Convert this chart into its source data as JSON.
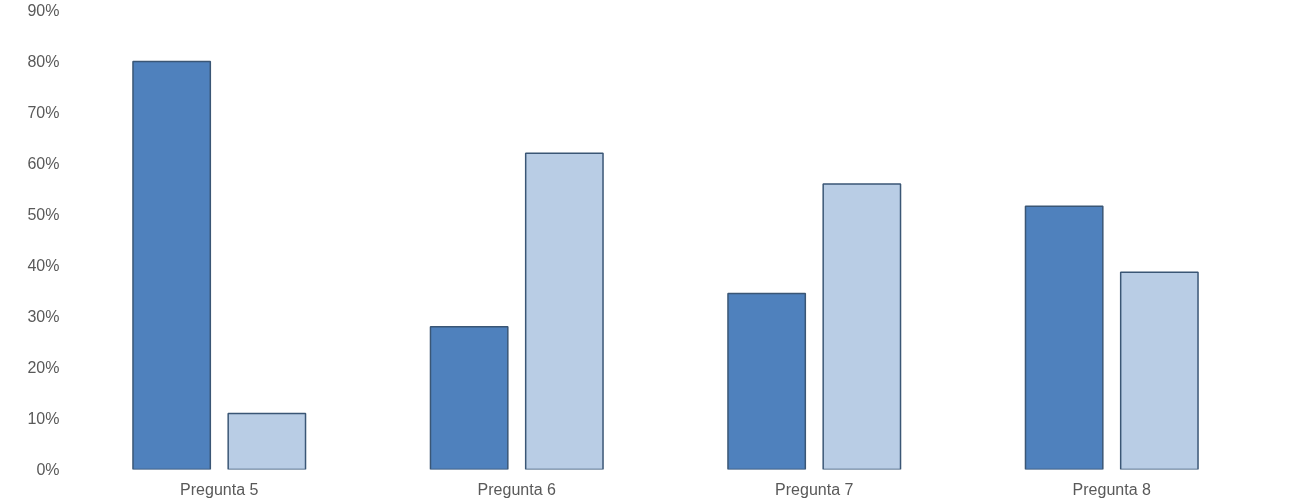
{
  "chart_data": {
    "type": "bar",
    "categories": [
      "Pregunta 5",
      "Pregunta 6",
      "Pregunta 7",
      "Pregunta 8"
    ],
    "series": [
      {
        "color": "#4f81bd",
        "values": [
          80,
          28,
          34.5,
          51.6
        ]
      },
      {
        "color": "#b9cde5",
        "values": [
          11,
          62,
          56,
          38.7
        ]
      }
    ],
    "ylim": [
      0,
      90
    ],
    "yticks": [
      {
        "value": 0,
        "label": "0%"
      },
      {
        "value": 10,
        "label": "10%"
      },
      {
        "value": 20,
        "label": "20%"
      },
      {
        "value": 30,
        "label": "30%"
      },
      {
        "value": 40,
        "label": "40%"
      },
      {
        "value": 50,
        "label": "50%"
      },
      {
        "value": 60,
        "label": "60%"
      },
      {
        "value": 70,
        "label": "70%"
      },
      {
        "value": 80,
        "label": "80%"
      },
      {
        "value": 90,
        "label": "90%"
      }
    ],
    "grid": false
  }
}
